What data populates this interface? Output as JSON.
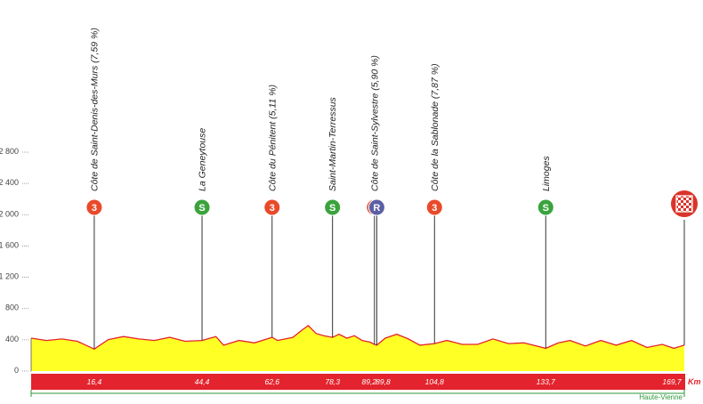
{
  "chart_data": {
    "type": "area",
    "ylim": [
      0,
      2800
    ],
    "y_ticks": [
      {
        "label": "2 800",
        "value": 2800
      },
      {
        "label": "2 400",
        "value": 2400
      },
      {
        "label": "2 000",
        "value": 2000
      },
      {
        "label": "1 600",
        "value": 1600
      },
      {
        "label": "1 200",
        "value": 1200
      },
      {
        "label": "800",
        "value": 800
      },
      {
        "label": "400",
        "value": 400
      },
      {
        "label": "0",
        "value": 0
      }
    ],
    "x_unit": "Km",
    "region": "Haute-Vienne",
    "colors": {
      "area_fill": "#ffff26",
      "profile_line": "#e3232d",
      "km_band": "#e3232d",
      "km_text": "#ffffff",
      "km_unit": "#e3232d",
      "region_text": "#2e9a3a",
      "region_line": "#2e9a3a",
      "marker_climb3": "#e84a2a",
      "marker_sprint": "#3aa33d",
      "marker_feed": "#5b5fa5",
      "marker_finish": "#d9342b",
      "axis_text": "#444444"
    },
    "profile": {
      "x": [
        0,
        4,
        8,
        12,
        16.4,
        20,
        24,
        28,
        32,
        36,
        40,
        44.4,
        48,
        50,
        54,
        58,
        62.6,
        64,
        68,
        70,
        72,
        74,
        76,
        78.3,
        80,
        82,
        84,
        86,
        88,
        89.2,
        89.8,
        92,
        95,
        98,
        101,
        104.8,
        108,
        112,
        116,
        120,
        124,
        128,
        133.7,
        137,
        140,
        144,
        148,
        152,
        156,
        160,
        164,
        167,
        169.7
      ],
      "y": [
        410,
        380,
        400,
        370,
        270,
        390,
        430,
        400,
        380,
        420,
        370,
        380,
        430,
        320,
        380,
        350,
        420,
        380,
        420,
        500,
        570,
        470,
        440,
        420,
        460,
        410,
        440,
        380,
        360,
        330,
        320,
        410,
        460,
        400,
        320,
        340,
        380,
        330,
        330,
        400,
        340,
        350,
        280,
        350,
        380,
        310,
        380,
        320,
        380,
        290,
        330,
        280,
        320
      ]
    },
    "markers": [
      {
        "km": 16.4,
        "km_label": "16,4",
        "label": "Côte de Saint-Denis-des-Murs (7,59 %)",
        "symbol": "3",
        "kind": "climb3"
      },
      {
        "km": 44.4,
        "km_label": "44,4",
        "label": "La Geneytouse",
        "symbol": "S",
        "kind": "sprint"
      },
      {
        "km": 62.6,
        "km_label": "62,6",
        "label": "Côte du Pénitent (5,11 %)",
        "symbol": "3",
        "kind": "climb3"
      },
      {
        "km": 78.3,
        "km_label": "78,3",
        "label": "Saint-Martin-Terressus",
        "symbol": "S",
        "kind": "sprint"
      },
      {
        "km": 89.2,
        "km_label": "89,2",
        "label": "Côte de Saint-Sylvestre (5,90 %)",
        "symbol": "3",
        "kind": "climb3"
      },
      {
        "km": 89.8,
        "km_label": "89,8",
        "label": "",
        "symbol": "R",
        "kind": "feed"
      },
      {
        "km": 104.8,
        "km_label": "104,8",
        "label": "Côte de la Sablonade (7,87 %)",
        "symbol": "3",
        "kind": "climb3"
      },
      {
        "km": 133.7,
        "km_label": "133,7",
        "label": "Limoges",
        "symbol": "S",
        "kind": "sprint"
      },
      {
        "km": 169.7,
        "km_label": "169,7",
        "label": "",
        "symbol": "",
        "kind": "finish"
      }
    ]
  }
}
